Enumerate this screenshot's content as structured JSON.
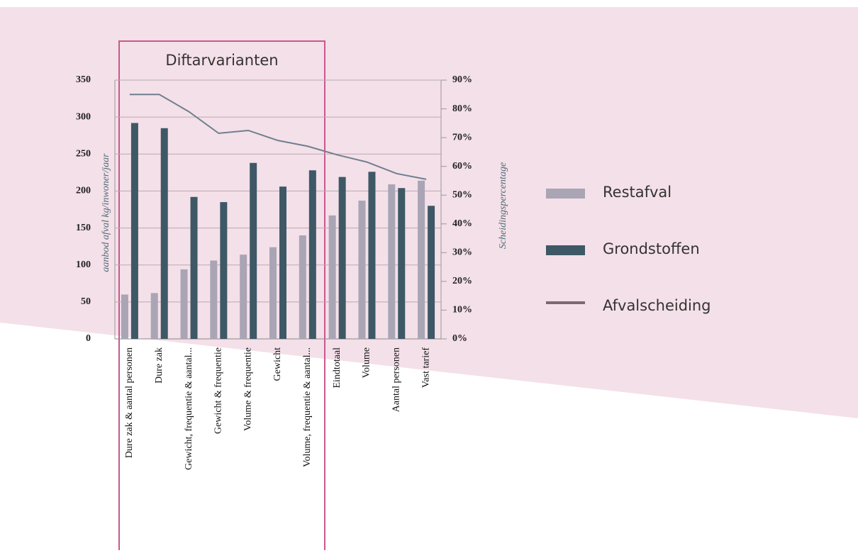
{
  "chart_data": {
    "type": "bar",
    "annotation": "Diftarvarianten",
    "y_label": "aanbod afval kg/inwoner/jaar",
    "y2_label": "Scheidingspercentage",
    "categories": [
      "Dure zak & aantal personen",
      "Dure zak",
      "Gewicht, frequentie & aantal...",
      "Gewicht & frequentie",
      "Volume & frequentie",
      "Gewicht",
      "Volume, frequentie & aantal...",
      "Eindtotaal",
      "Volume",
      "Aantal personen",
      "Vast tarief"
    ],
    "series": [
      {
        "name": "Restafval",
        "color": "#aaa5b5",
        "values": [
          60,
          62,
          94,
          106,
          114,
          124,
          140,
          167,
          187,
          209,
          214
        ]
      },
      {
        "name": "Grondstoffen",
        "color": "#3e5866",
        "values": [
          292,
          285,
          192,
          185,
          238,
          206,
          228,
          219,
          226,
          204,
          180
        ]
      },
      {
        "name": "Afvalscheiding",
        "type": "line",
        "axis": "y2",
        "color": "#6e7f90",
        "values": [
          85,
          85,
          79,
          71.5,
          72.5,
          69,
          67,
          64,
          61.5,
          57.5,
          55.5
        ]
      }
    ],
    "ylim": [
      0,
      350
    ],
    "yticks": [
      0,
      50,
      100,
      150,
      200,
      250,
      300,
      350
    ],
    "y2lim": [
      0,
      90
    ],
    "y2ticks": [
      {
        "value": 0,
        "label": "0%"
      },
      {
        "value": 10,
        "label": "10%"
      },
      {
        "value": 20,
        "label": "20%"
      },
      {
        "value": 30,
        "label": "30%"
      },
      {
        "value": 40,
        "label": "40%"
      },
      {
        "value": 50,
        "label": "50%"
      },
      {
        "value": 60,
        "label": "60%"
      },
      {
        "value": 70,
        "label": "70%"
      },
      {
        "value": 80,
        "label": "80%"
      },
      {
        "value": 90,
        "label": "90%"
      }
    ],
    "grid": true,
    "legend": "right"
  }
}
